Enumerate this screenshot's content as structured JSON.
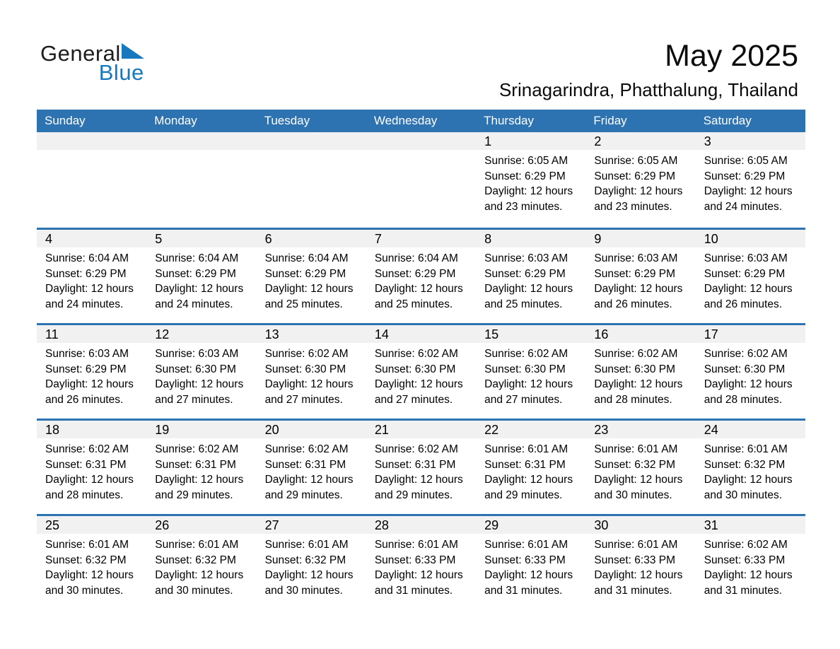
{
  "logo": {
    "text_black": "General",
    "text_blue": "Blue"
  },
  "header": {
    "title": "May 2025",
    "location": "Srinagarindra, Phatthalung, Thailand"
  },
  "weekdays": [
    "Sunday",
    "Monday",
    "Tuesday",
    "Wednesday",
    "Thursday",
    "Friday",
    "Saturday"
  ],
  "colors": {
    "header_bar": "#2E73B1",
    "week_divider": "#2E73B1",
    "day_band": "#F1F1F1",
    "logo_blue": "#1878BE",
    "weekday_text": "#FFFFFF",
    "page_bg": "#FFFFFF"
  },
  "weeks": [
    [
      null,
      null,
      null,
      null,
      {
        "day": "1",
        "line1": "Sunrise: 6:05 AM",
        "line2": "Sunset: 6:29 PM",
        "line3": "Daylight: 12 hours",
        "line4": "and 23 minutes."
      },
      {
        "day": "2",
        "line1": "Sunrise: 6:05 AM",
        "line2": "Sunset: 6:29 PM",
        "line3": "Daylight: 12 hours",
        "line4": "and 23 minutes."
      },
      {
        "day": "3",
        "line1": "Sunrise: 6:05 AM",
        "line2": "Sunset: 6:29 PM",
        "line3": "Daylight: 12 hours",
        "line4": "and 24 minutes."
      }
    ],
    [
      {
        "day": "4",
        "line1": "Sunrise: 6:04 AM",
        "line2": "Sunset: 6:29 PM",
        "line3": "Daylight: 12 hours",
        "line4": "and 24 minutes."
      },
      {
        "day": "5",
        "line1": "Sunrise: 6:04 AM",
        "line2": "Sunset: 6:29 PM",
        "line3": "Daylight: 12 hours",
        "line4": "and 24 minutes."
      },
      {
        "day": "6",
        "line1": "Sunrise: 6:04 AM",
        "line2": "Sunset: 6:29 PM",
        "line3": "Daylight: 12 hours",
        "line4": "and 25 minutes."
      },
      {
        "day": "7",
        "line1": "Sunrise: 6:04 AM",
        "line2": "Sunset: 6:29 PM",
        "line3": "Daylight: 12 hours",
        "line4": "and 25 minutes."
      },
      {
        "day": "8",
        "line1": "Sunrise: 6:03 AM",
        "line2": "Sunset: 6:29 PM",
        "line3": "Daylight: 12 hours",
        "line4": "and 25 minutes."
      },
      {
        "day": "9",
        "line1": "Sunrise: 6:03 AM",
        "line2": "Sunset: 6:29 PM",
        "line3": "Daylight: 12 hours",
        "line4": "and 26 minutes."
      },
      {
        "day": "10",
        "line1": "Sunrise: 6:03 AM",
        "line2": "Sunset: 6:29 PM",
        "line3": "Daylight: 12 hours",
        "line4": "and 26 minutes."
      }
    ],
    [
      {
        "day": "11",
        "line1": "Sunrise: 6:03 AM",
        "line2": "Sunset: 6:29 PM",
        "line3": "Daylight: 12 hours",
        "line4": "and 26 minutes."
      },
      {
        "day": "12",
        "line1": "Sunrise: 6:03 AM",
        "line2": "Sunset: 6:30 PM",
        "line3": "Daylight: 12 hours",
        "line4": "and 27 minutes."
      },
      {
        "day": "13",
        "line1": "Sunrise: 6:02 AM",
        "line2": "Sunset: 6:30 PM",
        "line3": "Daylight: 12 hours",
        "line4": "and 27 minutes."
      },
      {
        "day": "14",
        "line1": "Sunrise: 6:02 AM",
        "line2": "Sunset: 6:30 PM",
        "line3": "Daylight: 12 hours",
        "line4": "and 27 minutes."
      },
      {
        "day": "15",
        "line1": "Sunrise: 6:02 AM",
        "line2": "Sunset: 6:30 PM",
        "line3": "Daylight: 12 hours",
        "line4": "and 27 minutes."
      },
      {
        "day": "16",
        "line1": "Sunrise: 6:02 AM",
        "line2": "Sunset: 6:30 PM",
        "line3": "Daylight: 12 hours",
        "line4": "and 28 minutes."
      },
      {
        "day": "17",
        "line1": "Sunrise: 6:02 AM",
        "line2": "Sunset: 6:30 PM",
        "line3": "Daylight: 12 hours",
        "line4": "and 28 minutes."
      }
    ],
    [
      {
        "day": "18",
        "line1": "Sunrise: 6:02 AM",
        "line2": "Sunset: 6:31 PM",
        "line3": "Daylight: 12 hours",
        "line4": "and 28 minutes."
      },
      {
        "day": "19",
        "line1": "Sunrise: 6:02 AM",
        "line2": "Sunset: 6:31 PM",
        "line3": "Daylight: 12 hours",
        "line4": "and 29 minutes."
      },
      {
        "day": "20",
        "line1": "Sunrise: 6:02 AM",
        "line2": "Sunset: 6:31 PM",
        "line3": "Daylight: 12 hours",
        "line4": "and 29 minutes."
      },
      {
        "day": "21",
        "line1": "Sunrise: 6:02 AM",
        "line2": "Sunset: 6:31 PM",
        "line3": "Daylight: 12 hours",
        "line4": "and 29 minutes."
      },
      {
        "day": "22",
        "line1": "Sunrise: 6:01 AM",
        "line2": "Sunset: 6:31 PM",
        "line3": "Daylight: 12 hours",
        "line4": "and 29 minutes."
      },
      {
        "day": "23",
        "line1": "Sunrise: 6:01 AM",
        "line2": "Sunset: 6:32 PM",
        "line3": "Daylight: 12 hours",
        "line4": "and 30 minutes."
      },
      {
        "day": "24",
        "line1": "Sunrise: 6:01 AM",
        "line2": "Sunset: 6:32 PM",
        "line3": "Daylight: 12 hours",
        "line4": "and 30 minutes."
      }
    ],
    [
      {
        "day": "25",
        "line1": "Sunrise: 6:01 AM",
        "line2": "Sunset: 6:32 PM",
        "line3": "Daylight: 12 hours",
        "line4": "and 30 minutes."
      },
      {
        "day": "26",
        "line1": "Sunrise: 6:01 AM",
        "line2": "Sunset: 6:32 PM",
        "line3": "Daylight: 12 hours",
        "line4": "and 30 minutes."
      },
      {
        "day": "27",
        "line1": "Sunrise: 6:01 AM",
        "line2": "Sunset: 6:32 PM",
        "line3": "Daylight: 12 hours",
        "line4": "and 30 minutes."
      },
      {
        "day": "28",
        "line1": "Sunrise: 6:01 AM",
        "line2": "Sunset: 6:33 PM",
        "line3": "Daylight: 12 hours",
        "line4": "and 31 minutes."
      },
      {
        "day": "29",
        "line1": "Sunrise: 6:01 AM",
        "line2": "Sunset: 6:33 PM",
        "line3": "Daylight: 12 hours",
        "line4": "and 31 minutes."
      },
      {
        "day": "30",
        "line1": "Sunrise: 6:01 AM",
        "line2": "Sunset: 6:33 PM",
        "line3": "Daylight: 12 hours",
        "line4": "and 31 minutes."
      },
      {
        "day": "31",
        "line1": "Sunrise: 6:02 AM",
        "line2": "Sunset: 6:33 PM",
        "line3": "Daylight: 12 hours",
        "line4": "and 31 minutes."
      }
    ]
  ]
}
